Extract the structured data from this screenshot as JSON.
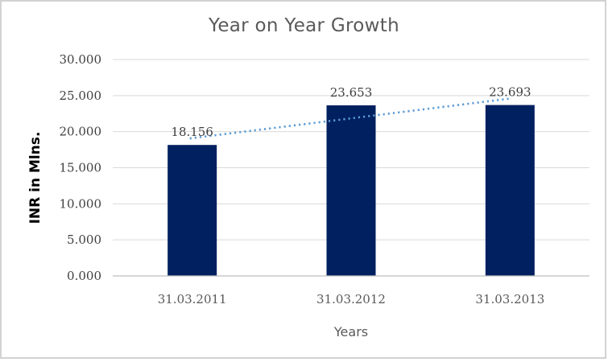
{
  "chart_data": {
    "type": "bar",
    "title": "Year on Year Growth",
    "xlabel": "Years",
    "ylabel": "INR in Mlns.",
    "categories": [
      "31.03.2011",
      "31.03.2012",
      "31.03.2013"
    ],
    "values": [
      18.156,
      23.653,
      23.693
    ],
    "data_labels": [
      "18.156",
      "23.653",
      "23.693"
    ],
    "ylim": [
      0,
      30
    ],
    "ytick_step": 5,
    "ytick_labels": [
      "0.000",
      "5.000",
      "10.000",
      "15.000",
      "20.000",
      "25.000",
      "30.000"
    ],
    "grid": true,
    "legend": "none",
    "bar_color": "#002060",
    "trendline": {
      "type": "linear",
      "style": "dotted",
      "color": "#5b9bd5"
    },
    "gridline_color": "#d9d9d9",
    "axis_line_color": "#bfbfbf",
    "title_color": "#595959",
    "tick_label_color": "#3f3f3f",
    "category_label_color": "#595959",
    "frame_border_color": "#d2d2d2"
  }
}
